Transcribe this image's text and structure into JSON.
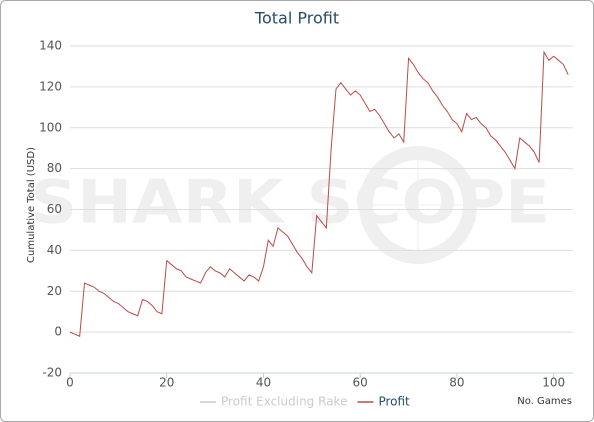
{
  "chart_data": {
    "type": "line",
    "title": "Total Profit",
    "y_label": "Cumulative Total (USD)",
    "x_label": "No. Games",
    "watermark": "SHARK SCOPE",
    "x": [
      0,
      1,
      2,
      3,
      4,
      5,
      6,
      7,
      8,
      9,
      10,
      11,
      12,
      13,
      14,
      15,
      16,
      17,
      18,
      19,
      20,
      21,
      22,
      23,
      24,
      25,
      26,
      27,
      28,
      29,
      30,
      31,
      32,
      33,
      34,
      35,
      36,
      37,
      38,
      39,
      40,
      41,
      42,
      43,
      44,
      45,
      46,
      47,
      48,
      49,
      50,
      51,
      52,
      53,
      54,
      55,
      56,
      57,
      58,
      59,
      60,
      61,
      62,
      63,
      64,
      65,
      66,
      67,
      68,
      69,
      70,
      71,
      72,
      73,
      74,
      75,
      76,
      77,
      78,
      79,
      80,
      81,
      82,
      83,
      84,
      85,
      86,
      87,
      88,
      89,
      90,
      91,
      92,
      93,
      94,
      95,
      96,
      97,
      98,
      99,
      100,
      101,
      102,
      103
    ],
    "series": [
      {
        "name": "Profit Excluding Rake",
        "color": "#cccccc",
        "visible": false
      },
      {
        "name": "Profit",
        "color": "#b94c4c",
        "visible": true,
        "values": [
          0,
          -1,
          -2,
          24,
          23,
          22,
          20,
          19,
          17,
          15,
          14,
          12,
          10,
          9,
          8,
          16,
          15,
          13,
          10,
          9,
          35,
          33,
          31,
          30,
          27,
          26,
          25,
          24,
          29,
          32,
          30,
          29,
          27,
          31,
          29,
          27,
          25,
          28,
          27,
          25,
          32,
          45,
          42,
          51,
          49,
          47,
          43,
          39,
          36,
          32,
          29,
          57,
          54,
          51,
          90,
          119,
          122,
          119,
          116,
          118,
          116,
          112,
          108,
          109,
          106,
          102,
          98,
          95,
          97,
          93,
          134,
          131,
          127,
          124,
          122,
          118,
          115,
          111,
          108,
          104,
          102,
          98,
          107,
          104,
          105,
          102,
          100,
          96,
          94,
          91,
          88,
          84,
          80,
          95,
          93,
          91,
          88,
          83,
          137,
          133,
          135,
          133,
          131,
          126
        ]
      }
    ],
    "xlim": [
      0,
      104
    ],
    "xticks": [
      0,
      20,
      40,
      60,
      80,
      100
    ],
    "ylim": [
      -20,
      140
    ],
    "yticks": [
      -20,
      0,
      20,
      40,
      60,
      80,
      100,
      120,
      140
    ],
    "grid": true
  }
}
